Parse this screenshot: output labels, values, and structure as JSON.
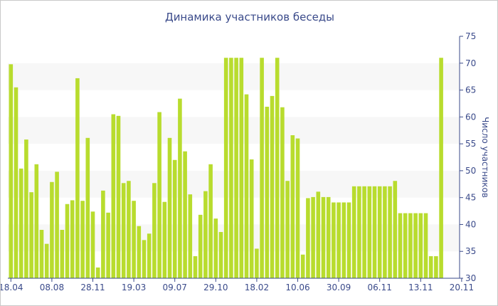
{
  "chart_data": {
    "type": "bar",
    "title": "Динамика участников беседы",
    "ylabel": "Число участников",
    "xlabel": "",
    "ylim": [
      30,
      75
    ],
    "yticks": [
      30,
      35,
      40,
      45,
      50,
      55,
      60,
      65,
      70,
      75
    ],
    "y_axis_side": "right",
    "grid": "alternating horizontal bands",
    "legend": "none",
    "colors": {
      "bar": "#b8dc2e",
      "band": "#f7f7f7",
      "axis": "#3a4a8a",
      "text": "#3a4a8a"
    },
    "x_tick_labels": [
      {
        "index": 0,
        "label": "18.04"
      },
      {
        "index": 8,
        "label": "08.08"
      },
      {
        "index": 16,
        "label": "28.11"
      },
      {
        "index": 24,
        "label": "19.03"
      },
      {
        "index": 32,
        "label": "09.07"
      },
      {
        "index": 40,
        "label": "29.10"
      },
      {
        "index": 48,
        "label": "18.02"
      },
      {
        "index": 56,
        "label": "10.06"
      },
      {
        "index": 64,
        "label": "30.09"
      },
      {
        "index": 72,
        "label": "06.11"
      },
      {
        "index": 80,
        "label": "13.11"
      },
      {
        "index": 88,
        "label": "20.11"
      }
    ],
    "values": [
      69.8,
      65.5,
      50.4,
      55.8,
      46,
      51.2,
      39,
      36.4,
      47.9,
      49.8,
      39,
      43.8,
      44.5,
      67.2,
      44.4,
      56.1,
      42.4,
      32,
      46.3,
      42.2,
      60.5,
      60.2,
      47.7,
      48.1,
      44.4,
      39.7,
      37.1,
      38.3,
      47.7,
      60.9,
      44.2,
      56.1,
      52,
      63.4,
      53.6,
      45.6,
      34.1,
      41.8,
      46.2,
      51.2,
      41.1,
      38.6,
      71,
      71,
      71,
      71,
      64.2,
      52.1,
      35.5,
      71,
      61.9,
      63.9,
      71,
      61.8,
      48.1,
      56.6,
      56,
      34.4,
      44.9,
      45.1,
      46.1,
      45.1,
      45.1,
      44.1,
      44.1,
      44.1,
      44.1,
      47.1,
      47.1,
      47.1,
      47.1,
      47.1,
      47.1,
      47.1,
      47.1,
      48.1,
      42.1,
      42.1,
      42.1,
      42.1,
      42.1,
      42.1,
      34.1,
      34.1,
      71
    ]
  }
}
